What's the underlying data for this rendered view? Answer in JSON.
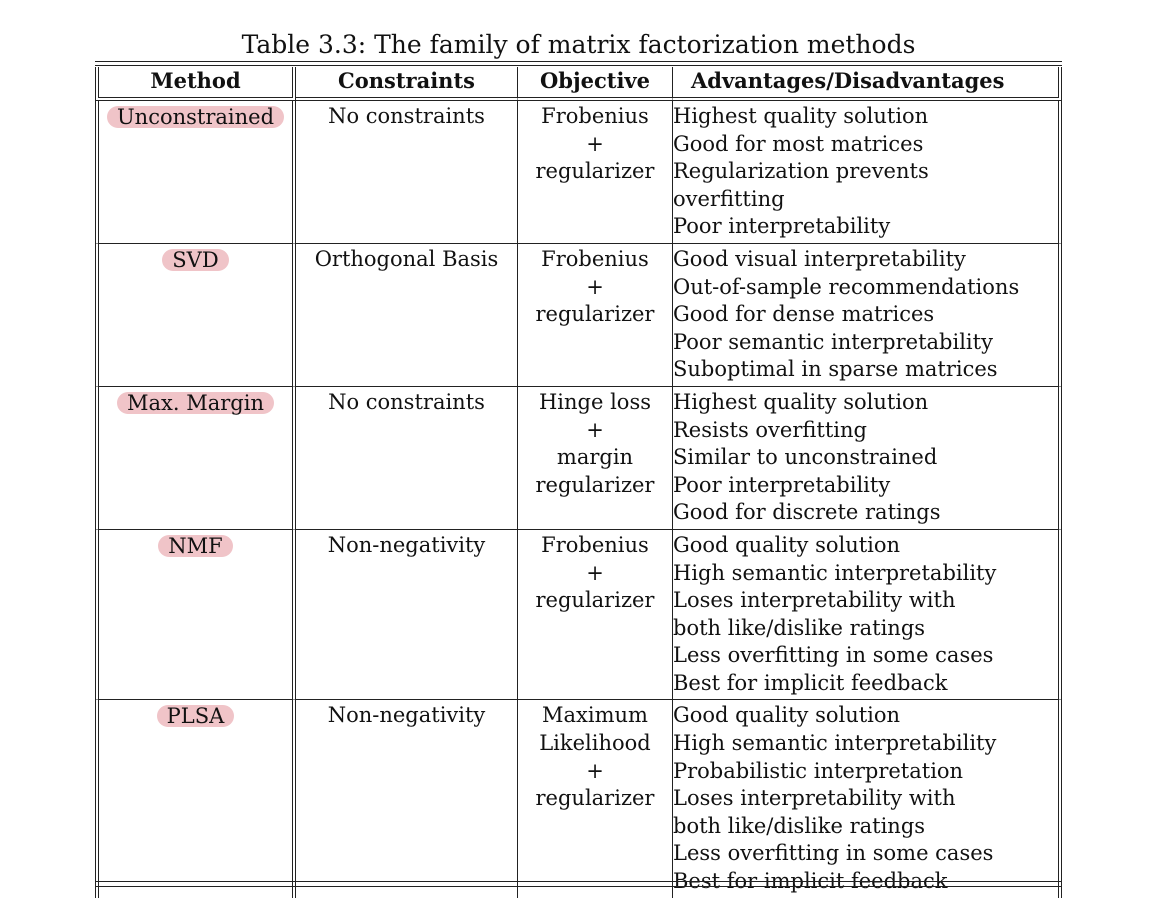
{
  "caption": "Table 3.3: The family of matrix factorization methods",
  "headers": [
    "Method",
    "Constraints",
    "Objective",
    "Advantages/Disadvantages"
  ],
  "rows": [
    {
      "method": "Unconstrained",
      "constraints": "No constraints",
      "objective": [
        "Frobenius",
        "+",
        "regularizer"
      ],
      "advantages": [
        "Highest quality solution",
        "Good for most matrices",
        "Regularization prevents",
        "overfitting",
        "Poor interpretability"
      ]
    },
    {
      "method": "SVD",
      "constraints": "Orthogonal Basis",
      "objective": [
        "Frobenius",
        "+",
        "regularizer"
      ],
      "advantages": [
        "Good visual interpretability",
        "Out-of-sample recommendations",
        "Good for dense matrices",
        "Poor semantic interpretability",
        "Suboptimal in sparse matrices"
      ]
    },
    {
      "method": "Max. Margin",
      "constraints": "No constraints",
      "objective": [
        "Hinge loss",
        "+",
        "margin",
        "regularizer"
      ],
      "advantages": [
        "Highest quality solution",
        "Resists overfitting",
        "Similar to unconstrained",
        "Poor interpretability",
        "Good for discrete ratings"
      ]
    },
    {
      "method": "NMF",
      "constraints": "Non-negativity",
      "objective": [
        "Frobenius",
        "+",
        "regularizer"
      ],
      "advantages": [
        "Good quality solution",
        "High semantic interpretability",
        "Loses interpretability with",
        "both like/dislike ratings",
        "Less overfitting in some cases",
        "Best for implicit feedback"
      ]
    },
    {
      "method": "PLSA",
      "constraints": "Non-negativity",
      "objective": [
        "Maximum",
        "Likelihood",
        "+",
        "regularizer"
      ],
      "advantages": [
        "Good quality solution",
        "High semantic interpretability",
        "Probabilistic interpretation",
        "Loses interpretability with",
        "both like/dislike ratings",
        "Less overfitting in some cases",
        "Best for implicit feedback"
      ]
    }
  ],
  "highlight_color": "#f0c4c8"
}
